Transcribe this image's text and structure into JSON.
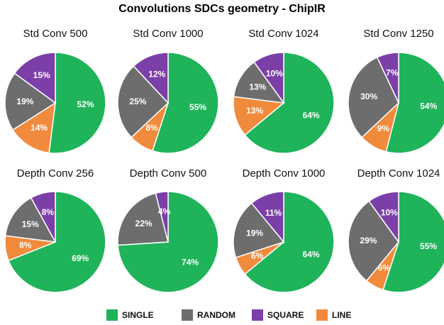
{
  "title": "Convolutions SDCs geometry - ChipIR",
  "chart_data": [
    {
      "type": "pie",
      "title": "Std Conv 500",
      "categories": [
        "SINGLE",
        "RANDOM",
        "SQUARE",
        "LINE"
      ],
      "colors": [
        "#1fb35a",
        "#6d6d6d",
        "#7c3fa8",
        "#f08a3c"
      ],
      "values": [
        52,
        19,
        15,
        14
      ],
      "value_labels": [
        "52%",
        "19%",
        "15%",
        "14%"
      ]
    },
    {
      "type": "pie",
      "title": "Std Conv 1000",
      "categories": [
        "SINGLE",
        "RANDOM",
        "SQUARE",
        "LINE"
      ],
      "colors": [
        "#1fb35a",
        "#6d6d6d",
        "#7c3fa8",
        "#f08a3c"
      ],
      "values": [
        55,
        25,
        12,
        8
      ],
      "value_labels": [
        "55%",
        "25%",
        "12%",
        "8%"
      ]
    },
    {
      "type": "pie",
      "title": "Std Conv 1024",
      "categories": [
        "SINGLE",
        "RANDOM",
        "SQUARE",
        "LINE"
      ],
      "colors": [
        "#1fb35a",
        "#6d6d6d",
        "#7c3fa8",
        "#f08a3c"
      ],
      "values": [
        64,
        13,
        10,
        13
      ],
      "value_labels": [
        "64%",
        "13%",
        "10%",
        "13%"
      ]
    },
    {
      "type": "pie",
      "title": "Std Conv 1250",
      "categories": [
        "SINGLE",
        "RANDOM",
        "SQUARE",
        "LINE"
      ],
      "colors": [
        "#1fb35a",
        "#6d6d6d",
        "#7c3fa8",
        "#f08a3c"
      ],
      "values": [
        54,
        30,
        7,
        9
      ],
      "value_labels": [
        "54%",
        "30%",
        "7%",
        "9%"
      ]
    },
    {
      "type": "pie",
      "title": "Depth Conv 256",
      "categories": [
        "SINGLE",
        "RANDOM",
        "SQUARE",
        "LINE"
      ],
      "colors": [
        "#1fb35a",
        "#6d6d6d",
        "#7c3fa8",
        "#f08a3c"
      ],
      "values": [
        69,
        15,
        8,
        8
      ],
      "value_labels": [
        "69%",
        "15%",
        "8%",
        "8%"
      ]
    },
    {
      "type": "pie",
      "title": "Depth Conv 500",
      "categories": [
        "SINGLE",
        "RANDOM",
        "SQUARE",
        "LINE"
      ],
      "colors": [
        "#1fb35a",
        "#6d6d6d",
        "#7c3fa8",
        "#f08a3c"
      ],
      "values": [
        74,
        22,
        4,
        0
      ],
      "value_labels": [
        "74%",
        "22%",
        "4%",
        null
      ]
    },
    {
      "type": "pie",
      "title": "Depth Conv 1000",
      "categories": [
        "SINGLE",
        "RANDOM",
        "SQUARE",
        "LINE"
      ],
      "colors": [
        "#1fb35a",
        "#6d6d6d",
        "#7c3fa8",
        "#f08a3c"
      ],
      "values": [
        64,
        19,
        11,
        6
      ],
      "value_labels": [
        "64%",
        "19%",
        "11%",
        "6%"
      ]
    },
    {
      "type": "pie",
      "title": "Depth Conv 1024",
      "categories": [
        "SINGLE",
        "RANDOM",
        "SQUARE",
        "LINE"
      ],
      "colors": [
        "#1fb35a",
        "#6d6d6d",
        "#7c3fa8",
        "#f08a3c"
      ],
      "values": [
        55,
        29,
        10,
        6
      ],
      "value_labels": [
        "55%",
        "29%",
        "10%",
        "6%"
      ]
    }
  ]
}
